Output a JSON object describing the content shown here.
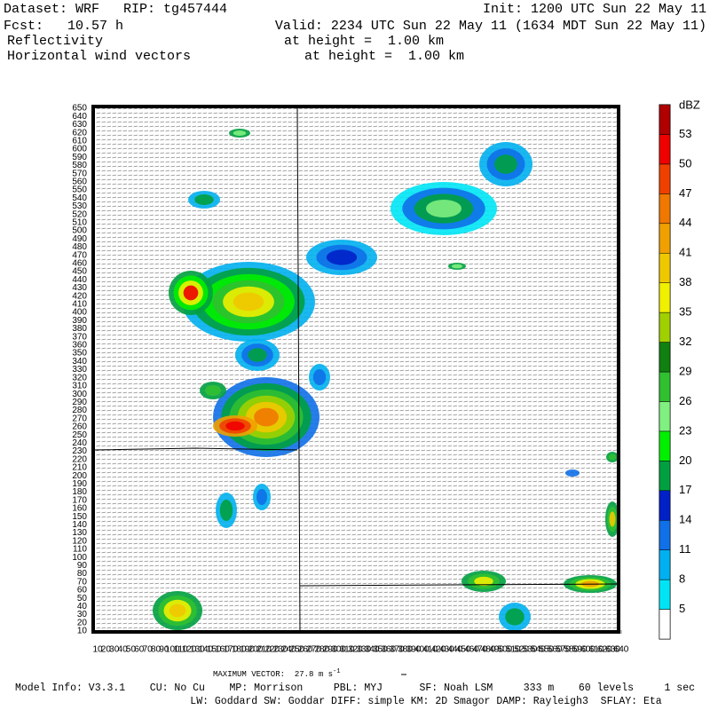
{
  "header": {
    "dataset": "Dataset: WRF   RIP: tg457444",
    "init": "Init: 1200 UTC Sun 22 May 11",
    "fcst": "Fcst:   10.57 h",
    "valid": "Valid: 2234 UTC Sun 22 May 11 (1634 MDT Sun 22 May 11)",
    "field1": "Reflectivity",
    "field1_height": "at height =  1.00 km",
    "field2": "Horizontal wind vectors",
    "field2_height": "at height =  1.00 km"
  },
  "plot": {
    "xlim": [
      10,
      640
    ],
    "ylim": [
      10,
      650
    ],
    "xticks": [
      10,
      20,
      30,
      40,
      50,
      60,
      70,
      80,
      90,
      100,
      110,
      120,
      130,
      140,
      150,
      160,
      170,
      180,
      190,
      200,
      210,
      220,
      230,
      240,
      250,
      260,
      270,
      280,
      290,
      300,
      310,
      320,
      330,
      340,
      350,
      360,
      370,
      380,
      390,
      400,
      410,
      420,
      430,
      440,
      450,
      460,
      470,
      480,
      490,
      500,
      510,
      520,
      530,
      540,
      550,
      560,
      570,
      580,
      590,
      600,
      610,
      620,
      630,
      640
    ],
    "yticks": [
      10,
      20,
      30,
      40,
      50,
      60,
      70,
      80,
      90,
      100,
      110,
      120,
      130,
      140,
      150,
      160,
      170,
      180,
      190,
      200,
      210,
      220,
      230,
      240,
      250,
      260,
      270,
      280,
      290,
      300,
      310,
      320,
      330,
      340,
      350,
      360,
      370,
      380,
      390,
      400,
      410,
      420,
      430,
      440,
      450,
      460,
      470,
      480,
      490,
      500,
      510,
      520,
      530,
      540,
      550,
      560,
      570,
      580,
      590,
      600,
      610,
      620,
      630,
      640,
      650
    ]
  },
  "colorbar": {
    "unit": "dBZ",
    "levels": [
      5,
      8,
      11,
      14,
      17,
      20,
      23,
      26,
      29,
      32,
      35,
      38,
      41,
      44,
      47,
      50,
      53
    ],
    "colors": [
      "#ffffff",
      "#00e5f5",
      "#00b0f0",
      "#1070e8",
      "#0020c8",
      "#00a040",
      "#00f000",
      "#80f080",
      "#30c030",
      "#108010",
      "#a0d000",
      "#f0f000",
      "#f0c800",
      "#f0a000",
      "#f07800",
      "#f04000",
      "#f00000",
      "#b00000"
    ]
  },
  "footer": {
    "max_vector": "MAXIMUM VECTOR:  27.8 m s",
    "max_vector_exp": "-1",
    "model_info": "Model Info: V3.3.1    CU: No Cu    MP: Morrison     PBL: MYJ      SF: Noah LSM     333 m    60 levels     1 sec",
    "model_info2": "LW: Goddard SW: Goddar DIFF: simple KM: 2D Smagor DAMP: Rayleigh3  SFLAY: Eta"
  }
}
